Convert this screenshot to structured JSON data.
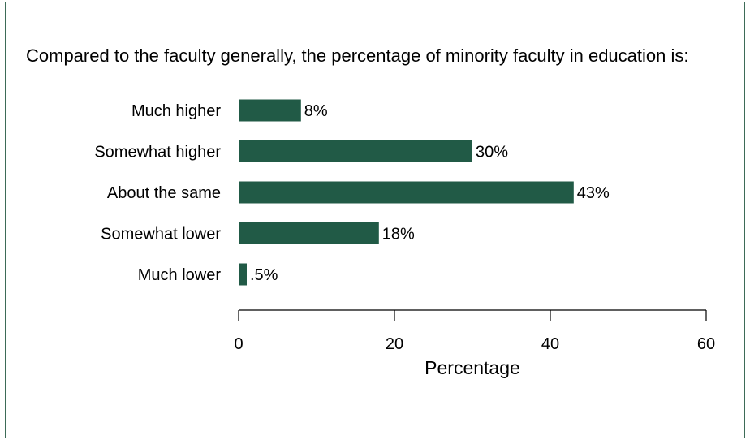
{
  "chart_data": {
    "type": "bar",
    "orientation": "horizontal",
    "title": "Compared to the faculty generally, the percentage of minority faculty in education is:",
    "categories": [
      "Much higher",
      "Somewhat higher",
      "About the same",
      "Somewhat lower",
      "Much lower"
    ],
    "values": [
      8,
      30,
      43,
      18,
      0.5
    ],
    "value_labels": [
      "8%",
      "30%",
      "43%",
      "18%",
      ".5%"
    ],
    "xlabel": "Percentage",
    "ylabel": "",
    "xlim": [
      0,
      60
    ],
    "xticks": [
      0,
      20,
      40,
      60
    ],
    "xtick_labels": [
      "0",
      "20",
      "40",
      "60"
    ],
    "grid": false,
    "legend": "none",
    "bar_color": "#215a46",
    "frame_color": "#3d6b57"
  }
}
